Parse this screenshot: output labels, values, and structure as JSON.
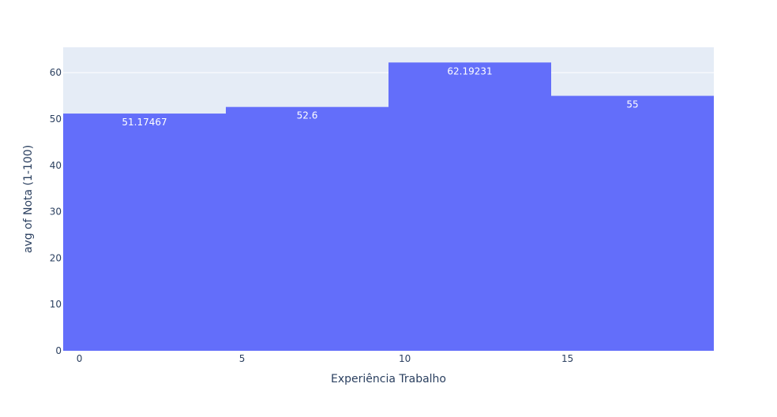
{
  "chart_data": {
    "type": "bar",
    "title": "",
    "xlabel": "Experiência Trabalho",
    "ylabel": "avg of Nota (1-100)",
    "bins": [
      {
        "x_start": -0.5,
        "x_end": 4.5,
        "value": 51.17467,
        "label": "51.17467"
      },
      {
        "x_start": 4.5,
        "x_end": 9.5,
        "value": 52.6,
        "label": "52.6"
      },
      {
        "x_start": 9.5,
        "x_end": 14.5,
        "value": 62.19231,
        "label": "62.19231"
      },
      {
        "x_start": 14.5,
        "x_end": 19.5,
        "value": 55,
        "label": "55"
      }
    ],
    "xlim": [
      -0.5,
      19.5
    ],
    "ylim": [
      0,
      65.47
    ],
    "x_ticks": [
      0,
      5,
      10,
      15
    ],
    "x_tick_labels": [
      "0",
      "5",
      "10",
      "15"
    ],
    "y_ticks": [
      0,
      10,
      20,
      30,
      40,
      50,
      60
    ],
    "y_tick_labels": [
      "0",
      "10",
      "20",
      "30",
      "40",
      "50",
      "60"
    ],
    "grid": true,
    "colors": {
      "bar": "#636efa",
      "plot_bg": "#e5ecf6",
      "grid": "#ffffff",
      "text": "#2a3f5f",
      "bar_text": "#ffffff"
    }
  }
}
